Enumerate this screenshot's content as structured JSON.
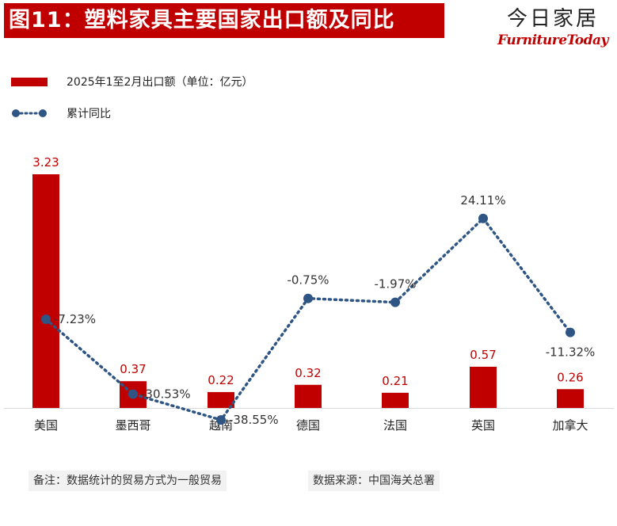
{
  "header": {
    "title": "图11：塑料家具主要国家出口额及同比",
    "brand_cn": "今日家居",
    "brand_en": "FurnitureToday"
  },
  "legend": {
    "bar_label": "2025年1至2月出口额（单位：亿元）",
    "line_label": "累计同比"
  },
  "footer": {
    "note": "备注：数据统计的贸易方式为一般贸易",
    "source": "数据来源：中国海关总署"
  },
  "colors": {
    "bar": "#c00000",
    "line": "#2e5584",
    "title_bg": "#c00000"
  },
  "chart_data": {
    "type": "bar",
    "categories": [
      "美国",
      "墨西哥",
      "越南",
      "德国",
      "法国",
      "英国",
      "加拿大"
    ],
    "series": [
      {
        "name": "2025年1至2月出口额（单位：亿元）",
        "kind": "bar",
        "values": [
          3.23,
          0.37,
          0.22,
          0.32,
          0.21,
          0.57,
          0.26
        ],
        "labels": [
          "3.23",
          "0.37",
          "0.22",
          "0.32",
          "0.21",
          "0.57",
          "0.26"
        ]
      },
      {
        "name": "累计同比",
        "kind": "line",
        "style": "dotted",
        "values": [
          -7.23,
          -30.53,
          -38.55,
          -0.75,
          -1.97,
          24.11,
          -11.32
        ],
        "labels": [
          "-7.23%",
          "-30.53%",
          "-38.55%",
          "-0.75%",
          "-1.97%",
          "24.11%",
          "-11.32%"
        ]
      }
    ],
    "bar_axis_range": [
      0,
      3.23
    ],
    "line_axis_range": [
      -40,
      28
    ],
    "grid": false,
    "legend_position": "top-left"
  }
}
